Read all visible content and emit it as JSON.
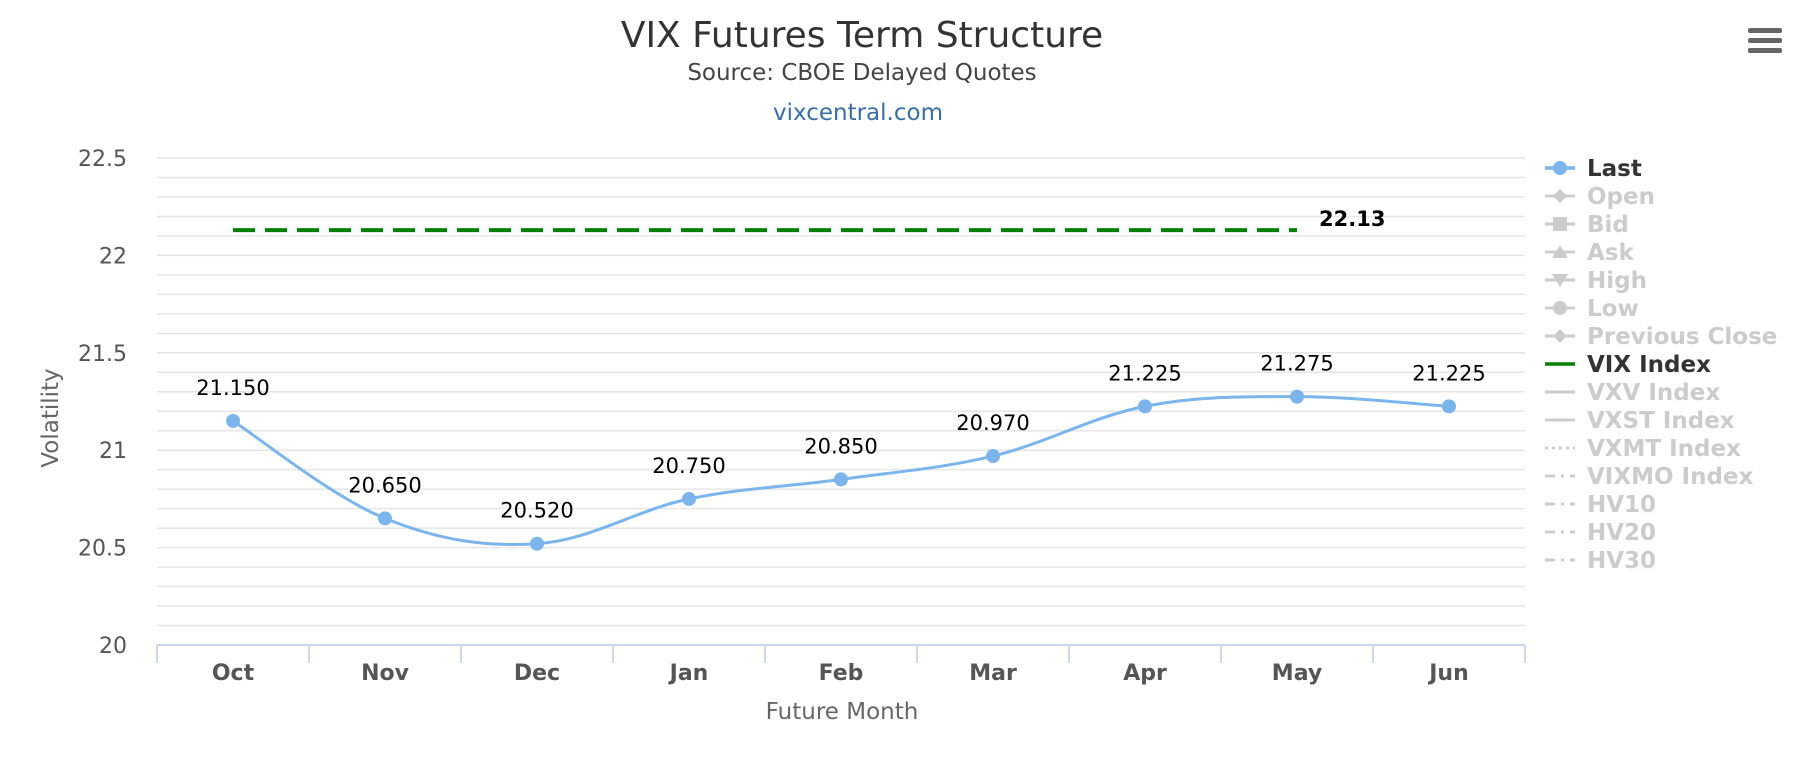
{
  "chart_data": {
    "type": "line",
    "title": "VIX Futures Term Structure",
    "subtitle": "Source: CBOE Delayed Quotes",
    "credit": "vixcentral.com",
    "xlabel": "Future Month",
    "ylabel": "Volatility",
    "categories": [
      "Oct",
      "Nov",
      "Dec",
      "Jan",
      "Feb",
      "Mar",
      "Apr",
      "May",
      "Jun"
    ],
    "ylim": [
      20,
      22.5
    ],
    "yticks": [
      20,
      20.5,
      21,
      21.5,
      22,
      22.5
    ],
    "ytick_labels": [
      "20",
      "20.5",
      "21",
      "21.5",
      "22",
      "22.5"
    ],
    "minor_grid_step": 0.1,
    "grid": true,
    "legend_position": "right",
    "series": [
      {
        "name": "Last",
        "color": "#7cb5ec",
        "smooth": true,
        "values": [
          21.15,
          20.65,
          20.52,
          20.75,
          20.85,
          20.97,
          21.225,
          21.275,
          21.225
        ],
        "labels": [
          "21.150",
          "20.650",
          "20.520",
          "20.750",
          "20.850",
          "20.970",
          "21.225",
          "21.275",
          "21.225"
        ]
      },
      {
        "name": "VIX Index",
        "color": "#008000",
        "dashed": true,
        "value": 22.13,
        "from_category": "Oct",
        "to_category": "May",
        "label": "22.13"
      }
    ],
    "legend": [
      {
        "name": "Last",
        "active": true,
        "symbol": "circle",
        "line": "solid"
      },
      {
        "name": "Open",
        "active": false,
        "symbol": "diamond",
        "line": "solid"
      },
      {
        "name": "Bid",
        "active": false,
        "symbol": "square",
        "line": "solid"
      },
      {
        "name": "Ask",
        "active": false,
        "symbol": "triangle",
        "line": "solid"
      },
      {
        "name": "High",
        "active": false,
        "symbol": "triangle-down",
        "line": "solid"
      },
      {
        "name": "Low",
        "active": false,
        "symbol": "circle",
        "line": "solid"
      },
      {
        "name": "Previous Close",
        "active": false,
        "symbol": "diamond",
        "line": "solid"
      },
      {
        "name": "VIX Index",
        "active": true,
        "symbol": "none",
        "line": "solid"
      },
      {
        "name": "VXV Index",
        "active": false,
        "symbol": "none",
        "line": "solid"
      },
      {
        "name": "VXST Index",
        "active": false,
        "symbol": "none",
        "line": "solid"
      },
      {
        "name": "VXMT Index",
        "active": false,
        "symbol": "none",
        "line": "dotted"
      },
      {
        "name": "VIXMO Index",
        "active": false,
        "symbol": "none",
        "line": "dashdot"
      },
      {
        "name": "HV10",
        "active": false,
        "symbol": "none",
        "line": "dashdot"
      },
      {
        "name": "HV20",
        "active": false,
        "symbol": "none",
        "line": "dashdot"
      },
      {
        "name": "HV30",
        "active": false,
        "symbol": "none",
        "line": "dashdot"
      }
    ]
  },
  "colors": {
    "legend_active": "#333333",
    "legend_inactive": "#cccccc",
    "grid": "#e6e6e6",
    "axis": "#ccd6eb"
  },
  "menu": {
    "icon": "hamburger-menu-icon"
  }
}
